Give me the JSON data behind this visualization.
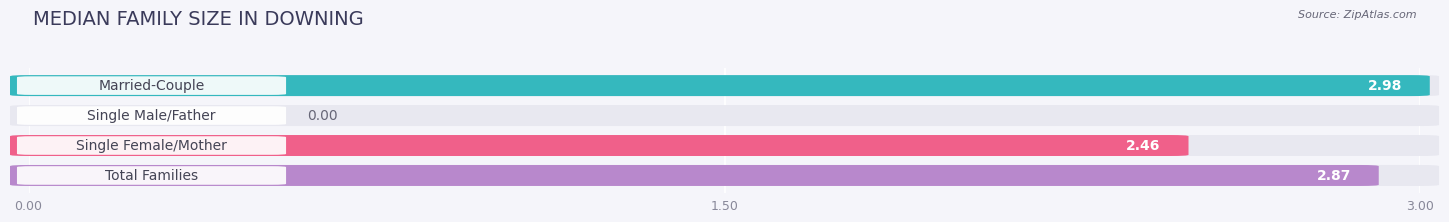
{
  "title": "MEDIAN FAMILY SIZE IN DOWNING",
  "source": "Source: ZipAtlas.com",
  "categories": [
    "Married-Couple",
    "Single Male/Father",
    "Single Female/Mother",
    "Total Families"
  ],
  "values": [
    2.98,
    0.0,
    2.46,
    2.87
  ],
  "bar_colors": [
    "#35b8be",
    "#a8b8e8",
    "#f0608a",
    "#b888cc"
  ],
  "bar_bg_color": "#e8e8f0",
  "background_color": "#f5f5fa",
  "xlim": [
    0,
    3.0
  ],
  "xtick_labels": [
    "0.00",
    "1.50",
    "3.00"
  ],
  "xtick_vals": [
    0.0,
    1.5,
    3.0
  ],
  "label_fontsize": 10,
  "value_fontsize": 10,
  "title_fontsize": 14
}
